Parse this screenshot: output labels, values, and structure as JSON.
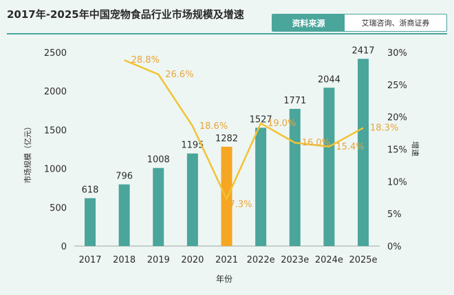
{
  "header": {
    "title": "2017年-2025年中国宠物食品行业市场规模及增速",
    "source_label": "资料来源",
    "source_text": "艾瑞咨询、浙商证券"
  },
  "colors": {
    "bar": "#4aa59b",
    "bar_highlight": "#f5a623",
    "line": "#f2c232",
    "growth_label": "#e8a43a",
    "text": "#2a2a2a"
  },
  "chart_data": {
    "type": "bar",
    "categories": [
      "2017",
      "2018",
      "2019",
      "2020",
      "2021",
      "2022e",
      "2023e",
      "2024e",
      "2025e"
    ],
    "series": [
      {
        "name": "市场规模（亿元）",
        "type": "bar",
        "axis": "left",
        "values": [
          618,
          796,
          1008,
          1195,
          1282,
          1527,
          1771,
          2044,
          2417
        ],
        "highlight_index": 4
      },
      {
        "name": "增速",
        "type": "line",
        "axis": "right",
        "values": [
          null,
          28.8,
          26.6,
          18.6,
          7.3,
          19.0,
          16.0,
          15.4,
          18.3
        ],
        "labels": [
          "",
          "28.8%",
          "26.6%",
          "18.6%",
          "7.3%",
          "19.0%",
          "16.0%",
          "15.4%",
          "18.3%"
        ]
      }
    ],
    "xlabel": "年份",
    "ylabel_left": "市场规模（亿元）",
    "ylabel_right": "增速",
    "ylim_left": [
      0,
      2500
    ],
    "ylim_right": [
      0,
      30
    ],
    "yticks_left": [
      "0",
      "500",
      "1000",
      "1500",
      "2000",
      "2500"
    ],
    "yticks_right": [
      "0%",
      "5%",
      "10%",
      "15%",
      "20%",
      "25%",
      "30%"
    ]
  }
}
